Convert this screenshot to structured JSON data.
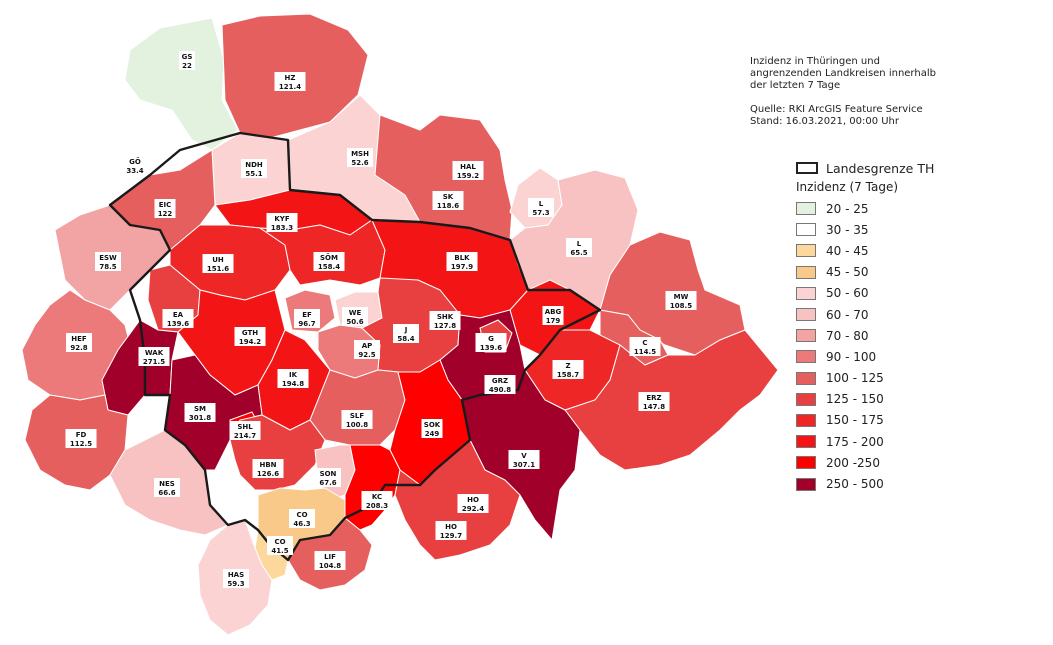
{
  "info": {
    "lines": [
      "Inzidenz in Thüringen und",
      "angrenzenden Landkreisen innerhalb",
      "der letzten 7 Tage"
    ],
    "source": "Quelle: RKI ArcGIS Feature Service",
    "stand": "Stand: 16.03.2021, 00:00 Uhr"
  },
  "legend": {
    "border_label": "Landesgrenze TH",
    "title": "Inzidenz (7 Tage)",
    "classes": [
      {
        "label": "20 - 25",
        "color": "#e3f1df"
      },
      {
        "label": "30 - 35",
        "color": "#ffffff"
      },
      {
        "label": "40 - 45",
        "color": "#fcd89c"
      },
      {
        "label": "45 - 50",
        "color": "#f9c98a"
      },
      {
        "label": "50 - 60",
        "color": "#fcd3d3"
      },
      {
        "label": "60 - 70",
        "color": "#f8c2c2"
      },
      {
        "label": "70 - 80",
        "color": "#f2a3a3"
      },
      {
        "label": "90 - 100",
        "color": "#ec7a7a"
      },
      {
        "label": "100 - 125",
        "color": "#e65f5f"
      },
      {
        "label": "125 - 150",
        "color": "#e84040"
      },
      {
        "label": "150 - 175",
        "color": "#ee2626"
      },
      {
        "label": "175 - 200",
        "color": "#f31515"
      },
      {
        "label": "200  -250",
        "color": "#ff0000"
      },
      {
        "label": "250 - 500",
        "color": "#a0002a"
      }
    ]
  },
  "districts": [
    {
      "code": "GS",
      "value": "22"
    },
    {
      "code": "HZ",
      "value": "121.4"
    },
    {
      "code": "GÖ",
      "value": "33.4"
    },
    {
      "code": "NDH",
      "value": "55.1"
    },
    {
      "code": "MSH",
      "value": "52.6"
    },
    {
      "code": "HAL",
      "value": "159.2"
    },
    {
      "code": "SK",
      "value": "118.6"
    },
    {
      "code": "L",
      "value": "57.3"
    },
    {
      "code": "L",
      "value": "65.5"
    },
    {
      "code": "EIC",
      "value": "122"
    },
    {
      "code": "KYF",
      "value": "183.3"
    },
    {
      "code": "ESW",
      "value": "78.5"
    },
    {
      "code": "UH",
      "value": "151.6"
    },
    {
      "code": "SÖM",
      "value": "158.4"
    },
    {
      "code": "BLK",
      "value": "197.9"
    },
    {
      "code": "MW",
      "value": "108.5"
    },
    {
      "code": "HEF",
      "value": "92.8"
    },
    {
      "code": "EA",
      "value": "139.6"
    },
    {
      "code": "WAK",
      "value": "271.5"
    },
    {
      "code": "GTH",
      "value": "194.2"
    },
    {
      "code": "EF",
      "value": "96.7"
    },
    {
      "code": "WE",
      "value": "50.6"
    },
    {
      "code": "AP",
      "value": "92.5"
    },
    {
      "code": "J",
      "value": "58.4"
    },
    {
      "code": "SHK",
      "value": "127.8"
    },
    {
      "code": "G",
      "value": "139.6"
    },
    {
      "code": "ABG",
      "value": "179"
    },
    {
      "code": "C",
      "value": "114.5"
    },
    {
      "code": "Z",
      "value": "158.7"
    },
    {
      "code": "GRZ",
      "value": "490.8"
    },
    {
      "code": "IK",
      "value": "194.8"
    },
    {
      "code": "ERZ",
      "value": "147.8"
    },
    {
      "code": "SM",
      "value": "301.8"
    },
    {
      "code": "SHL",
      "value": "214.7"
    },
    {
      "code": "SLF",
      "value": "100.8"
    },
    {
      "code": "SOK",
      "value": "249"
    },
    {
      "code": "V",
      "value": "307.1"
    },
    {
      "code": "FD",
      "value": "112.5"
    },
    {
      "code": "HBN",
      "value": "126.6"
    },
    {
      "code": "SON",
      "value": "67.6"
    },
    {
      "code": "NES",
      "value": "66.6"
    },
    {
      "code": "KC",
      "value": "208.3"
    },
    {
      "code": "HO",
      "value": "292.4"
    },
    {
      "code": "CO",
      "value": "46.3"
    },
    {
      "code": "HO",
      "value": "129.7"
    },
    {
      "code": "CO",
      "value": "41.5"
    },
    {
      "code": "LIF",
      "value": "104.8"
    },
    {
      "code": "HAS",
      "value": "59.3"
    }
  ]
}
